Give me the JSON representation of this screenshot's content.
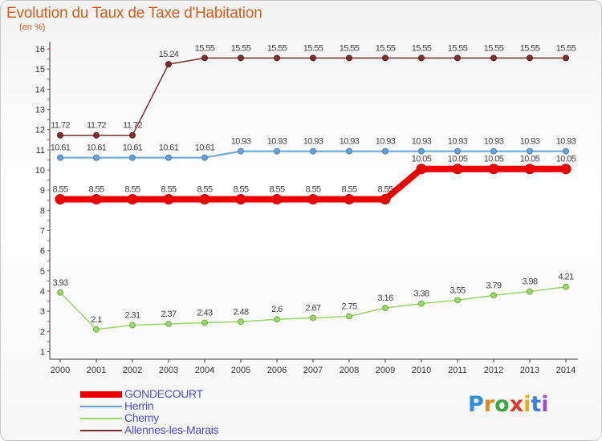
{
  "chart_data": {
    "type": "line",
    "title": "Evolution du Taux de Taxe d'Habitation",
    "ylabel": "(en %)",
    "xlabel": "",
    "x": [
      "2000",
      "2001",
      "2002",
      "2003",
      "2004",
      "2005",
      "2006",
      "2007",
      "2008",
      "2009",
      "2010",
      "2011",
      "2012",
      "2013",
      "2014"
    ],
    "ylim": [
      0,
      16
    ],
    "y_ticks": [
      "1",
      "2",
      "3",
      "4",
      "5",
      "6",
      "7",
      "8",
      "9",
      "10",
      "11",
      "12",
      "13",
      "14",
      "15",
      "16"
    ],
    "grid": false,
    "legend_position": "bottom-left",
    "series": [
      {
        "name": "GONDECOURT",
        "color": "#ee0000",
        "values": [
          8.55,
          8.55,
          8.55,
          8.55,
          8.55,
          8.55,
          8.55,
          8.55,
          8.55,
          8.55,
          10.05,
          10.05,
          10.05,
          10.05,
          10.05
        ],
        "labels": [
          "8.55",
          "8.55",
          "8.55",
          "8.55",
          "8.55",
          "8.55",
          "8.55",
          "8.55",
          "8.55",
          "8.55",
          "10.05",
          "10.05",
          "10.05",
          "10.05",
          "10.05"
        ]
      },
      {
        "name": "Herrin",
        "color": "#6aa3d6",
        "values": [
          10.61,
          10.61,
          10.61,
          10.61,
          10.61,
          10.93,
          10.93,
          10.93,
          10.93,
          10.93,
          10.93,
          10.93,
          10.93,
          10.93,
          10.93
        ],
        "labels": [
          "10.61",
          "10.61",
          "10.61",
          "10.61",
          "10.61",
          "10.93",
          "10.93",
          "10.93",
          "10.93",
          "10.93",
          "10.93",
          "10.93",
          "10.93",
          "10.93",
          "10.93"
        ]
      },
      {
        "name": "Chemy",
        "color": "#9ad46a",
        "values": [
          3.93,
          2.1,
          2.31,
          2.37,
          2.43,
          2.48,
          2.6,
          2.67,
          2.75,
          3.16,
          3.38,
          3.55,
          3.79,
          3.98,
          4.21
        ],
        "labels": [
          "3.93",
          "2.1",
          "2.31",
          "2.37",
          "2.43",
          "2.48",
          "2.6",
          "2.67",
          "2.75",
          "3.16",
          "3.38",
          "3.55",
          "3.79",
          "3.98",
          "4.21"
        ]
      },
      {
        "name": "Allennes-les-Marais",
        "color": "#7a2e2e",
        "values": [
          11.72,
          11.72,
          11.72,
          15.24,
          15.55,
          15.55,
          15.55,
          15.55,
          15.55,
          15.55,
          15.55,
          15.55,
          15.55,
          15.55,
          15.55
        ],
        "labels": [
          "11.72",
          "11.72",
          "11.72",
          "15.24",
          "15.55",
          "15.55",
          "15.55",
          "15.55",
          "15.55",
          "15.55",
          "15.55",
          "15.55",
          "15.55",
          "15.55",
          "15.55"
        ]
      }
    ]
  },
  "brand": {
    "logo_letters": [
      "P",
      "r",
      "o",
      "x",
      "i",
      "t",
      "i"
    ],
    "logo_colors": [
      "#2f8ee0",
      "#e08a1a",
      "#3aa845",
      "#e03a2a",
      "#e0b01a",
      "#3a7fe0",
      "#9c4fd0"
    ]
  }
}
